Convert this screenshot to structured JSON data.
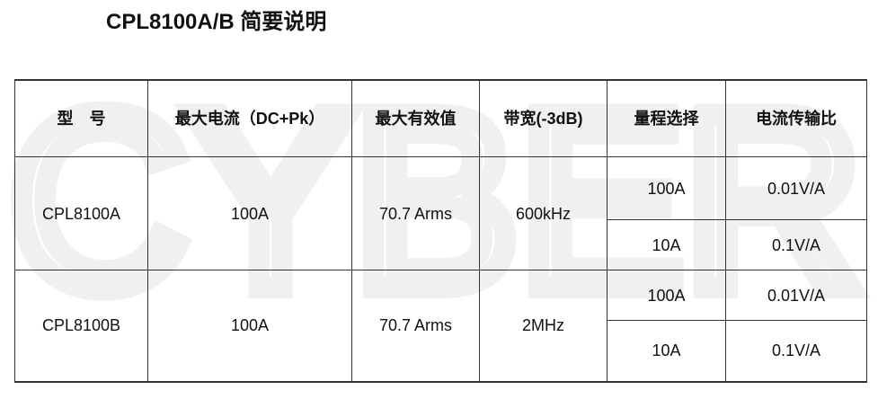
{
  "watermark": "CYBER",
  "title": "CPL8100A/B 简要说明",
  "table": {
    "headers": [
      "型　号",
      "最大电流（DC+Pk）",
      "最大有效值",
      "带宽(-3dB)",
      "量程选择",
      "电流传输比"
    ],
    "rows": [
      {
        "model": "CPL8100A",
        "max_current": "100A",
        "max_rms": "70.7 Arms",
        "bandwidth": "600kHz",
        "ranges": [
          {
            "range": "100A",
            "ratio": "0.01V/A"
          },
          {
            "range": "10A",
            "ratio": "0.1V/A"
          }
        ]
      },
      {
        "model": "CPL8100B",
        "max_current": "100A",
        "max_rms": "70.7 Arms",
        "bandwidth": "2MHz",
        "ranges": [
          {
            "range": "100A",
            "ratio": "0.01V/A"
          },
          {
            "range": "10A",
            "ratio": "0.1V/A"
          }
        ]
      }
    ]
  }
}
